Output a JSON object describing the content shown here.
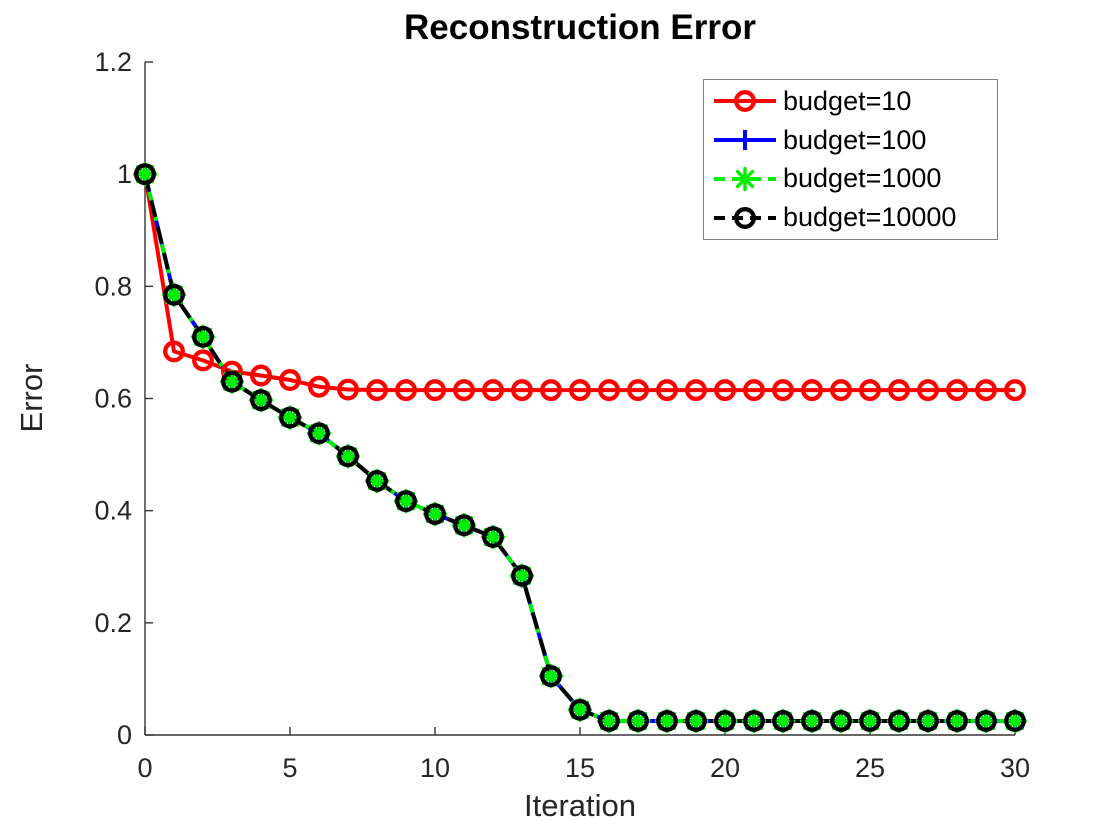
{
  "colors": {
    "background": "#ffffff",
    "axis": "#333333",
    "tick_label": "#262626",
    "axis_label": "#262626",
    "title": "#000000",
    "legend_border": "#808080"
  },
  "chart_data": {
    "type": "line",
    "title": "Reconstruction Error",
    "xlabel": "Iteration",
    "ylabel": "Error",
    "xlim": [
      0,
      30
    ],
    "ylim": [
      0,
      1.2
    ],
    "grid": false,
    "legend_position": "upper right",
    "x_ticks": {
      "values": [
        0,
        5,
        10,
        15,
        20,
        25,
        30
      ],
      "labels": [
        "0",
        "5",
        "10",
        "15",
        "20",
        "25",
        "30"
      ]
    },
    "y_ticks": {
      "values": [
        0,
        0.2,
        0.4,
        0.6,
        0.8,
        1,
        1.2
      ],
      "labels": [
        "0",
        "0.2",
        "0.4",
        "0.6",
        "0.8",
        "1",
        "1.2"
      ]
    },
    "x": [
      0,
      1,
      2,
      3,
      4,
      5,
      6,
      7,
      8,
      9,
      10,
      11,
      12,
      13,
      14,
      15,
      16,
      17,
      18,
      19,
      20,
      21,
      22,
      23,
      24,
      25,
      26,
      27,
      28,
      29,
      30
    ],
    "series": [
      {
        "name": "budget=10",
        "color": "#ff0000",
        "linestyle": "solid",
        "marker": "circle",
        "values": [
          1.0,
          0.684,
          0.668,
          0.648,
          0.641,
          0.633,
          0.621,
          0.616,
          0.615,
          0.615,
          0.615,
          0.615,
          0.615,
          0.615,
          0.615,
          0.615,
          0.615,
          0.615,
          0.615,
          0.615,
          0.615,
          0.615,
          0.615,
          0.615,
          0.615,
          0.615,
          0.615,
          0.615,
          0.615,
          0.615,
          0.615
        ]
      },
      {
        "name": "budget=100",
        "color": "#0000ff",
        "linestyle": "solid",
        "marker": "plus",
        "values": [
          1.0,
          0.785,
          0.71,
          0.63,
          0.597,
          0.566,
          0.538,
          0.497,
          0.453,
          0.417,
          0.394,
          0.374,
          0.353,
          0.284,
          0.105,
          0.045,
          0.025,
          0.025,
          0.025,
          0.025,
          0.025,
          0.025,
          0.025,
          0.025,
          0.025,
          0.025,
          0.025,
          0.025,
          0.025,
          0.025,
          0.025
        ]
      },
      {
        "name": "budget=1000",
        "color": "#00ee00",
        "linestyle": "dashed",
        "dash": [
          12,
          6
        ],
        "marker": "asterisk",
        "values": [
          1.0,
          0.785,
          0.71,
          0.63,
          0.597,
          0.566,
          0.538,
          0.497,
          0.453,
          0.417,
          0.394,
          0.374,
          0.353,
          0.284,
          0.105,
          0.045,
          0.025,
          0.025,
          0.025,
          0.025,
          0.025,
          0.025,
          0.025,
          0.025,
          0.025,
          0.025,
          0.025,
          0.025,
          0.025,
          0.025,
          0.025
        ]
      },
      {
        "name": "budget=10000",
        "color": "#000000",
        "linestyle": "dashed",
        "dash": [
          17,
          10
        ],
        "marker": "circle",
        "values": [
          1.0,
          0.785,
          0.71,
          0.63,
          0.597,
          0.566,
          0.538,
          0.497,
          0.453,
          0.417,
          0.394,
          0.374,
          0.353,
          0.284,
          0.105,
          0.045,
          0.025,
          0.025,
          0.025,
          0.025,
          0.025,
          0.025,
          0.025,
          0.025,
          0.025,
          0.025,
          0.025,
          0.025,
          0.025,
          0.025,
          0.025
        ]
      }
    ]
  }
}
